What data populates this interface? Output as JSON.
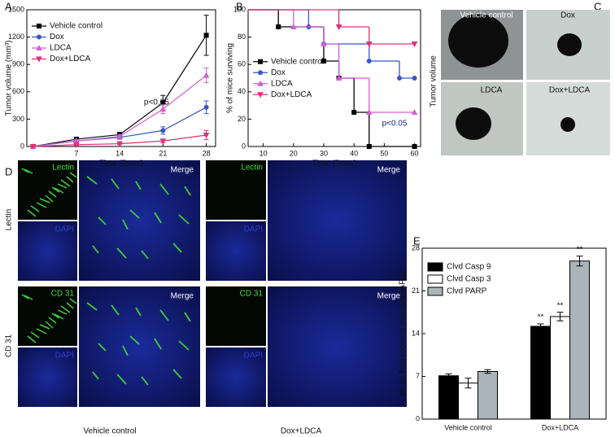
{
  "panel_labels": [
    "A",
    "B",
    "C",
    "D",
    "E"
  ],
  "chart_data": [
    {
      "type": "line",
      "xlabel": "Time (Days)",
      "ylabel": "Tumor volume (mm³)",
      "x": [
        0,
        7,
        14,
        21,
        28
      ],
      "xlim": [
        -1,
        29.5
      ],
      "xticks": [
        7,
        14,
        21,
        28
      ],
      "ylim": [
        0,
        1500
      ],
      "yticks": [
        0,
        300,
        600,
        900,
        1200,
        1500
      ],
      "legend": "upper left",
      "annotations": [
        "p<0.05"
      ],
      "series": [
        {
          "name": "Vehicle control",
          "color": "#000000",
          "marker": "square",
          "values": [
            0,
            80,
            130,
            480,
            1220
          ],
          "errors": [
            10,
            20,
            25,
            80,
            220
          ]
        },
        {
          "name": "Dox",
          "color": "#3a55c8",
          "marker": "circle",
          "values": [
            0,
            60,
            100,
            175,
            430
          ],
          "errors": [
            5,
            15,
            20,
            40,
            70
          ]
        },
        {
          "name": "LDCA",
          "color": "#d45fd4",
          "marker": "triangle",
          "values": [
            0,
            60,
            110,
            410,
            780
          ],
          "errors": [
            5,
            15,
            20,
            50,
            80
          ]
        },
        {
          "name": "Dox+LDCA",
          "color": "#e0307a",
          "marker": "triangle-down",
          "values": [
            0,
            20,
            30,
            60,
            125
          ],
          "errors": [
            3,
            10,
            10,
            20,
            50
          ]
        }
      ]
    },
    {
      "type": "step",
      "xlabel": "Time (Days)",
      "ylabel": "% of mice surviving",
      "xlim": [
        5,
        62
      ],
      "xticks": [
        10,
        20,
        30,
        40,
        50,
        60
      ],
      "ylim": [
        0,
        100
      ],
      "yticks": [
        0,
        20,
        40,
        60,
        80,
        100
      ],
      "legend": "center left",
      "annotations": [
        "p<0.05"
      ],
      "series": [
        {
          "name": "Vehicle control",
          "color": "#000000",
          "marker": "square",
          "x": [
            5,
            15,
            30,
            35,
            40,
            45,
            60
          ],
          "values": [
            100,
            87.5,
            62.5,
            50,
            25,
            0,
            0
          ]
        },
        {
          "name": "Dox",
          "color": "#3a55c8",
          "marker": "circle",
          "x": [
            5,
            25,
            30,
            45,
            55,
            60
          ],
          "values": [
            100,
            87.5,
            75,
            62.5,
            50,
            50
          ]
        },
        {
          "name": "LDCA",
          "color": "#d45fd4",
          "marker": "triangle",
          "x": [
            5,
            20,
            30,
            35,
            45,
            60
          ],
          "values": [
            100,
            87.5,
            75,
            50,
            25,
            25
          ]
        },
        {
          "name": "Dox+LDCA",
          "color": "#e0307a",
          "marker": "triangle-down",
          "x": [
            5,
            35,
            45,
            60
          ],
          "values": [
            100,
            87.5,
            75,
            75
          ]
        }
      ]
    },
    {
      "type": "bar",
      "ylabel": "Mean fluorescence intensity (AFU)",
      "categories": [
        "Vehicle control",
        "Dox+LDCA"
      ],
      "ylim": [
        0,
        28
      ],
      "yticks": [
        0,
        7,
        14,
        21,
        28
      ],
      "legend": "upper left",
      "annotations": [
        "**",
        "**",
        "**"
      ],
      "series": [
        {
          "name": "Clvd Casp 9",
          "color": "#000000",
          "values": [
            7.1,
            15.2
          ],
          "errors": [
            0.3,
            0.4
          ]
        },
        {
          "name": "Clvd Casp 3",
          "color": "#ffffff",
          "values": [
            5.9,
            16.8
          ],
          "errors": [
            0.8,
            0.7
          ]
        },
        {
          "name": "Clvd PARP",
          "color": "#a9b5b9",
          "values": [
            7.8,
            25.9
          ],
          "errors": [
            0.3,
            0.8
          ]
        }
      ]
    }
  ],
  "photos": {
    "ylabel": "Tumor volume",
    "tiles": [
      "Vehicle control",
      "Dox",
      "LDCA",
      "Dox+LDCA"
    ]
  },
  "micrographs": {
    "row_labels": [
      "Lectin",
      "CD 31"
    ],
    "column_labels": [
      "Vehicle control",
      "Dox+LDCA"
    ],
    "blocks": [
      {
        "stain": "Lectin",
        "dapi": "DAPI",
        "merge": "Merge"
      },
      {
        "stain": "Lectin",
        "dapi": "DAPI",
        "merge": "Merge"
      },
      {
        "stain": "CD 31",
        "dapi": "DAPI",
        "merge": "Merge"
      },
      {
        "stain": "CD 31",
        "dapi": "DAPI",
        "merge": "Merge"
      }
    ]
  }
}
